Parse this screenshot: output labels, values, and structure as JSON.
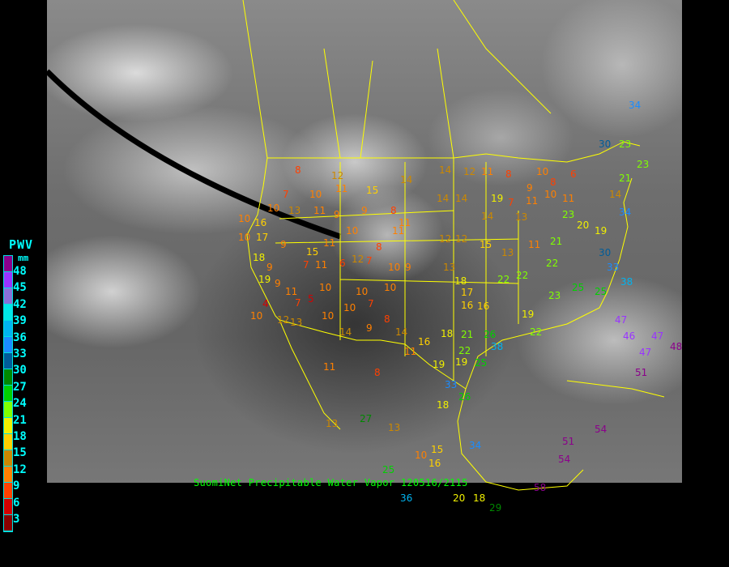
{
  "legend": {
    "title": "PWV",
    "unit": "mm",
    "labels": [
      "48",
      "45",
      "42",
      "39",
      "36",
      "33",
      "30",
      "27",
      "24",
      "21",
      "18",
      "15",
      "12",
      "9",
      "6",
      "3"
    ],
    "colors": [
      "#8b008b",
      "#9933ff",
      "#8870d8",
      "#00e8e8",
      "#00b4f0",
      "#1a8cff",
      "#005c99",
      "#008800",
      "#00d000",
      "#80ff00",
      "#f0f000",
      "#ffd000",
      "#cc8800",
      "#ff8000",
      "#ff4000",
      "#d40000",
      "#8b0000"
    ]
  },
  "caption": "SuomiNet Precipitable Water Vapor 120516/2115",
  "border_color": "#ffff00",
  "stations": [
    8,
    12,
    14,
    14,
    12,
    14,
    14,
    14,
    13,
    11,
    11,
    8,
    10,
    16,
    10,
    17,
    18,
    19,
    9,
    11,
    10,
    11,
    12,
    12,
    15,
    13,
    11,
    21,
    23,
    19,
    34,
    21,
    34,
    30,
    23,
    13,
    18,
    17,
    16,
    16,
    22,
    22,
    22,
    23,
    25,
    25,
    33,
    47,
    46,
    47,
    48,
    47,
    51,
    54,
    51,
    54,
    58,
    29,
    34,
    33,
    26,
    18,
    10,
    16,
    15,
    18,
    20,
    36,
    25,
    27,
    13,
    13,
    8,
    11,
    16,
    18,
    21,
    22,
    19,
    26,
    38,
    22,
    19,
    25,
    19,
    14,
    11,
    8,
    9,
    14,
    10,
    10,
    10,
    10,
    7,
    10,
    5,
    7,
    12,
    13,
    9,
    11,
    9,
    10,
    4,
    11,
    6,
    12,
    7,
    10,
    9,
    8,
    7,
    15,
    11,
    15,
    10,
    7,
    10,
    13,
    11,
    9,
    8,
    11,
    9,
    19,
    7,
    9,
    10,
    20,
    30,
    38,
    11,
    8,
    10,
    6,
    14,
    23
  ]
}
